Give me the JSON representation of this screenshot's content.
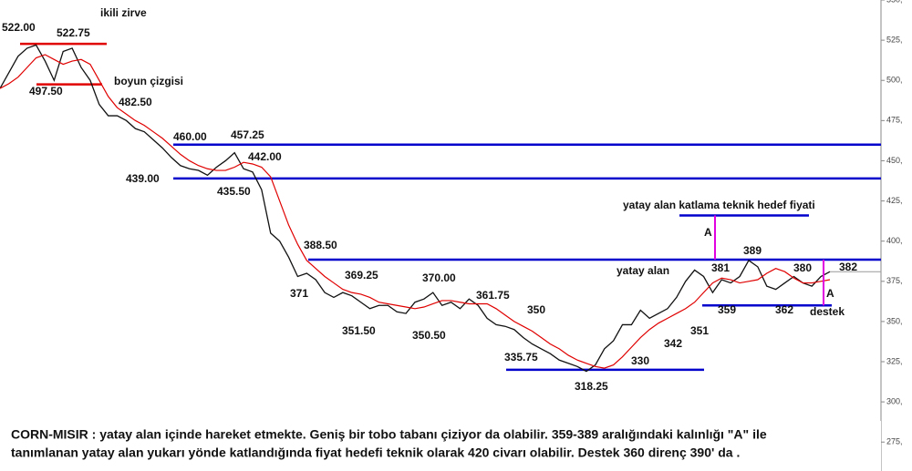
{
  "chart_data": {
    "type": "line",
    "ylim": [
      257,
      550
    ],
    "yticks": [
      {
        "value": 550,
        "label": "550,"
      },
      {
        "value": 525,
        "label": "525,"
      },
      {
        "value": 500,
        "label": "500,"
      },
      {
        "value": 475,
        "label": "475,"
      },
      {
        "value": 450,
        "label": "450,"
      },
      {
        "value": 425,
        "label": "425,"
      },
      {
        "value": 400,
        "label": "400,"
      },
      {
        "value": 375,
        "label": "375,"
      },
      {
        "value": 350,
        "label": "350,"
      },
      {
        "value": 325,
        "label": "325,"
      },
      {
        "value": 300,
        "label": "300,"
      },
      {
        "value": 275,
        "label": "275,"
      }
    ],
    "categories": [
      null,
      null,
      null,
      null,
      null,
      null,
      null,
      null,
      null,
      null,
      null,
      null,
      null,
      null,
      null,
      null,
      null,
      null,
      null,
      null,
      null,
      null,
      null,
      null,
      null,
      null,
      null,
      null,
      null,
      null,
      null,
      null,
      null,
      null,
      null,
      null,
      null,
      null,
      null,
      null,
      null,
      null,
      null,
      null,
      null,
      null,
      null,
      null,
      null,
      null,
      null,
      null,
      null,
      null,
      null,
      null,
      null,
      null,
      null,
      null,
      null,
      null,
      null,
      null,
      null,
      null,
      null,
      null,
      null,
      null,
      null,
      null,
      null,
      null,
      null,
      null,
      null,
      null,
      null,
      null,
      null,
      null,
      null,
      null,
      null,
      null,
      null,
      null,
      null,
      null,
      null,
      null,
      null
    ],
    "series": [
      {
        "color": "#111111",
        "values": [
          495,
          505,
          515,
          520,
          522,
          512,
          500,
          518,
          520,
          508,
          500,
          485,
          478,
          478,
          475,
          470,
          468,
          463,
          458,
          452,
          447,
          445,
          444,
          441,
          446,
          450,
          455,
          445,
          443,
          432,
          405,
          400,
          390,
          378,
          380,
          376,
          368,
          365,
          368,
          366,
          362,
          358,
          360,
          360,
          356,
          355,
          362,
          364,
          368,
          360,
          362,
          358,
          364,
          360,
          352,
          348,
          347,
          345,
          340,
          336,
          333,
          330,
          326,
          324,
          322,
          319,
          323,
          333,
          338,
          348,
          348,
          357,
          352,
          355,
          358,
          365,
          375,
          382,
          378,
          368,
          376,
          374,
          378,
          388,
          384,
          372,
          370,
          374,
          378,
          374,
          372,
          378,
          381
        ]
      },
      {
        "color": "#e00000",
        "values": [
          495,
          498,
          502,
          508,
          514,
          516,
          513,
          510,
          512,
          513,
          510,
          500,
          490,
          483,
          479,
          475,
          472,
          468,
          464,
          459,
          454,
          450,
          447,
          445,
          444,
          444,
          446,
          449,
          448,
          446,
          440,
          425,
          410,
          398,
          388,
          383,
          378,
          374,
          370,
          368,
          367,
          365,
          362,
          361,
          360,
          359,
          358,
          359,
          361,
          363,
          363,
          362,
          361,
          361,
          361,
          358,
          354,
          350,
          347,
          344,
          340,
          336,
          333,
          329,
          326,
          324,
          322,
          321,
          323,
          328,
          334,
          340,
          345,
          349,
          352,
          355,
          358,
          362,
          368,
          374,
          377,
          376,
          374,
          375,
          376,
          380,
          383,
          381,
          377,
          374,
          374,
          375,
          376
        ]
      }
    ],
    "levels": [
      {
        "value": 522.75,
        "color": "#e00000"
      },
      {
        "value": 497.5,
        "color": "#e00000"
      },
      {
        "value": 460,
        "color": "#0000cc"
      },
      {
        "value": 439,
        "color": "#0000cc"
      },
      {
        "value": 388.5,
        "color": "#0000cc"
      },
      {
        "value": 360,
        "color": "#0000cc"
      },
      {
        "value": 320,
        "color": "#0000cc"
      },
      {
        "value": 416,
        "color": "#0000cc"
      }
    ],
    "annotations": [
      "ikili zirve",
      "522.00",
      "522.75",
      "497.50",
      "boyun çizgisi",
      "482.50",
      "460.00",
      "457.25",
      "442.00",
      "439.00",
      "435.50",
      "388.50",
      "369.25",
      "370.00",
      "371",
      "361.75",
      "351.50",
      "350.50",
      "350",
      "335.75",
      "318.25",
      "330",
      "342",
      "351",
      "yatay alan katlama teknik hedef fiyati",
      "A",
      "yatay alan",
      "381",
      "389",
      "380",
      "382",
      "359",
      "362",
      "destek",
      "A"
    ],
    "caption": [
      "CORN-MISIR : yatay alan içinde hareket etmekte. Geniş bir tobo tabanı çiziyor da olabilir. 359-389 aralığındaki kalınlığı \"A\" ile",
      "tanımlanan yatay alan yukarı yönde katlandığında fiyat hedefi teknik olarak 420 civarı olabilir. Destek 360 direnç 390' da ."
    ]
  }
}
